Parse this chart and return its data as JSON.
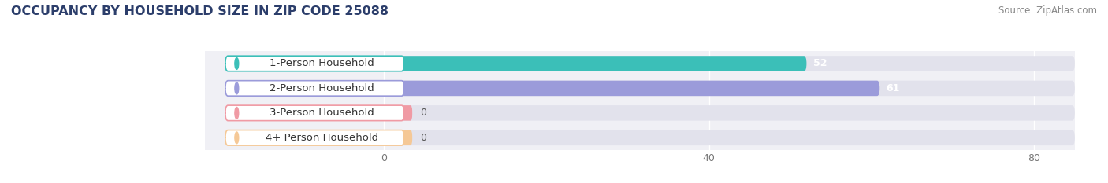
{
  "title": "OCCUPANCY BY HOUSEHOLD SIZE IN ZIP CODE 25088",
  "source": "Source: ZipAtlas.com",
  "categories": [
    "1-Person Household",
    "2-Person Household",
    "3-Person Household",
    "4+ Person Household"
  ],
  "values": [
    52,
    61,
    0,
    0
  ],
  "bar_colors": [
    "#3bbfb8",
    "#9b9bda",
    "#f09aa4",
    "#f5c896"
  ],
  "xlim_max": 85,
  "xticks": [
    0,
    40,
    80
  ],
  "fig_bg": "#ffffff",
  "plot_bg": "#f0f0f5",
  "bar_bg": "#e2e2ec",
  "title_fontsize": 11.5,
  "source_fontsize": 8.5,
  "label_fontsize": 9.5,
  "value_fontsize": 9,
  "tick_fontsize": 9
}
